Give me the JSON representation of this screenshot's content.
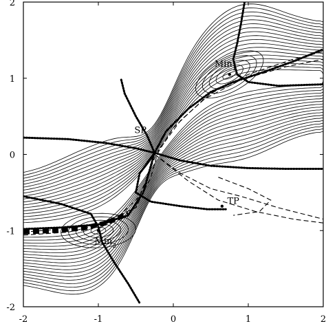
{
  "chart_data": {
    "type": "contour",
    "xlim": [
      -2,
      2
    ],
    "ylim": [
      -2,
      2
    ],
    "x_ticks": [
      -2,
      -1,
      0,
      1,
      2
    ],
    "y_ticks": [
      2,
      1,
      0,
      -1,
      -2
    ],
    "x_tick_labels": [
      "-2",
      "-1",
      "0",
      "1",
      "2"
    ],
    "y_tick_labels": [
      "2",
      "1",
      "0",
      "-1",
      "-2"
    ],
    "annotations": [
      {
        "text": "Min",
        "sub": "1",
        "x": 0.55,
        "y": 1.15
      },
      {
        "text": "SP",
        "x": -0.52,
        "y": 0.28
      },
      {
        "text": "TP",
        "x": 0.72,
        "y": -0.65
      },
      {
        "text": "Min",
        "sub": "2",
        "x": -1.05,
        "y": -1.18
      }
    ],
    "critical_points": {
      "Min1": [
        0.75,
        1.05
      ],
      "SP": [
        -0.25,
        0.02
      ],
      "TP": [
        0.65,
        -0.68
      ],
      "Min2": [
        -1.0,
        -1.0
      ]
    },
    "contour_levels": 18,
    "line_styles": [
      "solid contours",
      "dashed curves",
      "thick dotted curves"
    ],
    "colors": {
      "ink": "#000000",
      "background": "#ffffff"
    }
  }
}
